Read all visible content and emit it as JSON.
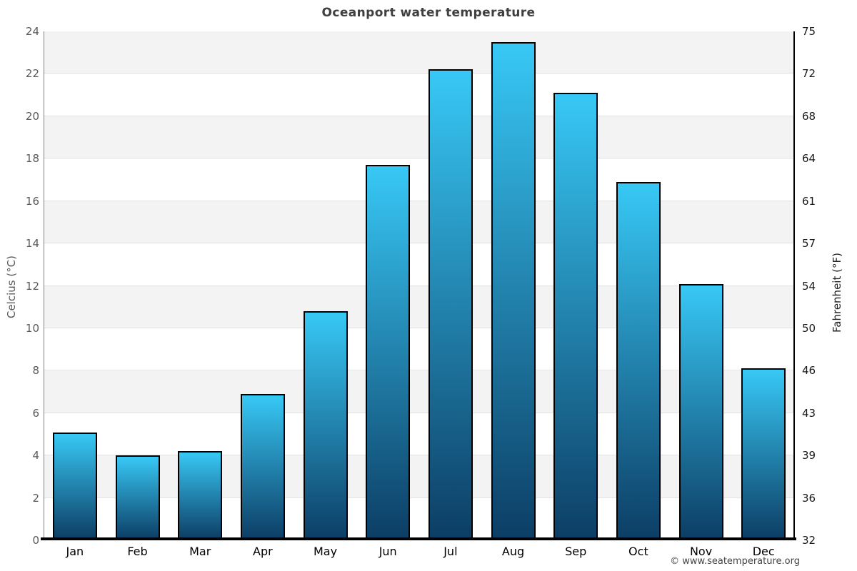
{
  "title": "Oceanport water temperature",
  "chart_data": {
    "type": "bar",
    "title": "Oceanport water temperature",
    "categories": [
      "Jan",
      "Feb",
      "Mar",
      "Apr",
      "May",
      "Jun",
      "Jul",
      "Aug",
      "Sep",
      "Oct",
      "Nov",
      "Dec"
    ],
    "values": [
      5.1,
      4.0,
      4.2,
      6.9,
      10.8,
      17.7,
      22.2,
      23.5,
      21.1,
      16.9,
      12.1,
      8.1
    ],
    "ylabel_left": "Celcius (°C)",
    "ylabel_right": "Fahrenheit (°F)",
    "ylim_celsius": [
      0,
      24
    ],
    "celsius_ticks": [
      0,
      2,
      4,
      6,
      8,
      10,
      12,
      14,
      16,
      18,
      20,
      22,
      24
    ],
    "fahrenheit_ticks": [
      32,
      36,
      39,
      43,
      46,
      50,
      54,
      57,
      61,
      64,
      68,
      72,
      75
    ],
    "grid": "horizontal alternating bands, gridline every 2°C",
    "legend": "none",
    "colors": {
      "bar_gradient_top": "#38c8f5",
      "bar_gradient_bottom": "#0c3e65",
      "bar_border": "#000000",
      "band_gray": "#f3f3f3",
      "band_white": "#ffffff",
      "gridline": "#e2e2e2",
      "title_text": "#3f3f3f",
      "left_axis_text": "#595959",
      "right_axis_text": "#1a1a1a"
    }
  },
  "footer": {
    "copyright": "© www.seatemperature.org"
  }
}
